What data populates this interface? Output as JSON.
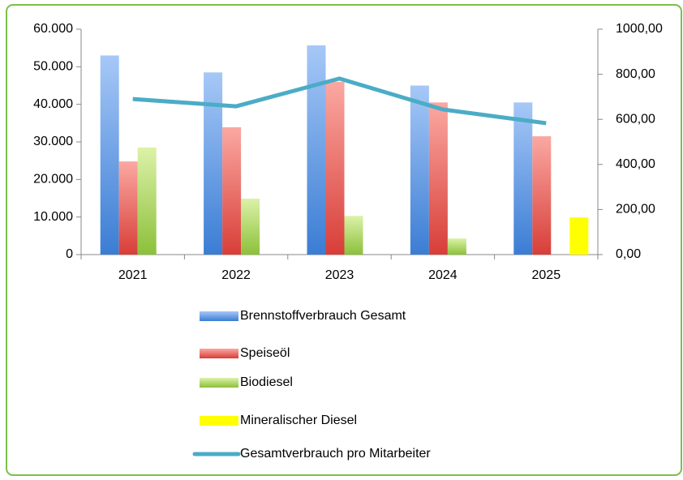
{
  "chart_data": {
    "type": "bar",
    "categories": [
      "2021",
      "2022",
      "2023",
      "2024",
      "2025"
    ],
    "series": [
      {
        "name": "Brennstoffverbrauch Gesamt",
        "color": "#5b9bd5",
        "values": [
          53000,
          48500,
          55700,
          45000,
          40500
        ]
      },
      {
        "name": "Speiseöl",
        "color": "#e05a50",
        "values": [
          24800,
          33900,
          46000,
          40500,
          31500
        ]
      },
      {
        "name": "Biodiesel",
        "color": "#a8d46a",
        "values": [
          28500,
          14900,
          10300,
          4300,
          null
        ]
      },
      {
        "name": "Mineralischer Diesel",
        "color": "#ffff00",
        "values": [
          null,
          null,
          null,
          null,
          9900
        ]
      },
      {
        "name": "Gesamtverbrauch pro Mitarbeiter",
        "color": "#4bacc6",
        "type": "line",
        "axis": "y2",
        "values": [
          690,
          658,
          781,
          644,
          583
        ]
      }
    ],
    "ylim": [
      0,
      60000
    ],
    "yticks": [
      {
        "value": 0,
        "label": "0"
      },
      {
        "value": 10000,
        "label": "10.000"
      },
      {
        "value": 20000,
        "label": "20.000"
      },
      {
        "value": 30000,
        "label": "30.000"
      },
      {
        "value": 40000,
        "label": "40.000"
      },
      {
        "value": 50000,
        "label": "50.000"
      },
      {
        "value": 60000,
        "label": "60.000"
      }
    ],
    "y2lim": [
      0,
      1000
    ],
    "y2ticks": [
      {
        "value": 0,
        "label": "0,00"
      },
      {
        "value": 200,
        "label": "200,00"
      },
      {
        "value": 400,
        "label": "400,00"
      },
      {
        "value": 600,
        "label": "600,00"
      },
      {
        "value": 800,
        "label": "800,00"
      },
      {
        "value": 1000,
        "label": "1000,00"
      }
    ],
    "grid": false,
    "legend": "bottom"
  }
}
